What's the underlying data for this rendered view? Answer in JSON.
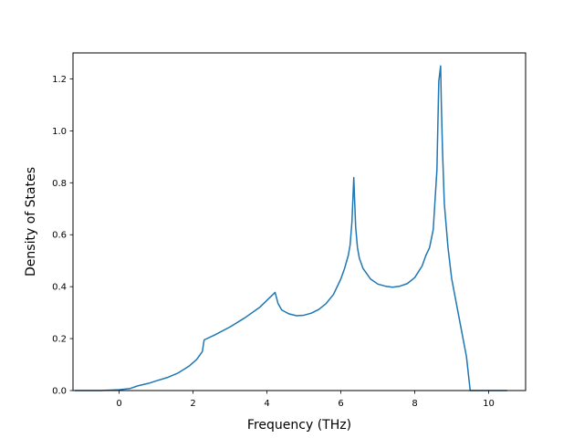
{
  "chart_data": {
    "type": "line",
    "title": "",
    "xlabel": "Frequency (THz)",
    "ylabel": "Density of States",
    "xlim": [
      -1.25,
      11.0
    ],
    "ylim": [
      0.0,
      1.3
    ],
    "xticks": [
      0,
      2,
      4,
      6,
      8,
      10
    ],
    "yticks": [
      0.0,
      0.2,
      0.4,
      0.6,
      0.8,
      1.0,
      1.2
    ],
    "xtick_labels": [
      "0",
      "2",
      "4",
      "6",
      "8",
      "10"
    ],
    "ytick_labels": [
      "0.0",
      "0.2",
      "0.4",
      "0.6",
      "0.8",
      "1.0",
      "1.2"
    ],
    "grid": false,
    "color": "#1f77b4",
    "series": [
      {
        "x": [
          -1.2,
          -0.5,
          0.0,
          0.3,
          0.5,
          0.8,
          1.0,
          1.3,
          1.6,
          1.9,
          2.1,
          2.25,
          2.3,
          2.6,
          3.0,
          3.4,
          3.8,
          4.22,
          4.3,
          4.4,
          4.6,
          4.8,
          5.0,
          5.2,
          5.4,
          5.6,
          5.8,
          6.0,
          6.1,
          6.2,
          6.25,
          6.3,
          6.35,
          6.4,
          6.45,
          6.5,
          6.6,
          6.8,
          7.0,
          7.2,
          7.4,
          7.6,
          7.8,
          8.0,
          8.2,
          8.3,
          8.4,
          8.5,
          8.6,
          8.65,
          8.7,
          8.72,
          8.75,
          8.8,
          8.9,
          9.0,
          9.2,
          9.4,
          9.5,
          9.55,
          9.7,
          10.0,
          10.5
        ],
        "y": [
          0.0,
          0.0,
          0.003,
          0.008,
          0.018,
          0.028,
          0.037,
          0.05,
          0.068,
          0.095,
          0.12,
          0.15,
          0.195,
          0.215,
          0.245,
          0.28,
          0.32,
          0.378,
          0.335,
          0.31,
          0.295,
          0.288,
          0.29,
          0.298,
          0.312,
          0.335,
          0.37,
          0.43,
          0.47,
          0.52,
          0.56,
          0.65,
          0.82,
          0.63,
          0.55,
          0.51,
          0.47,
          0.43,
          0.41,
          0.402,
          0.398,
          0.402,
          0.412,
          0.435,
          0.48,
          0.52,
          0.55,
          0.62,
          0.85,
          1.19,
          1.25,
          1.1,
          0.93,
          0.72,
          0.55,
          0.43,
          0.28,
          0.13,
          0.0,
          0.0,
          0.0,
          0.0,
          0.0
        ]
      }
    ]
  }
}
